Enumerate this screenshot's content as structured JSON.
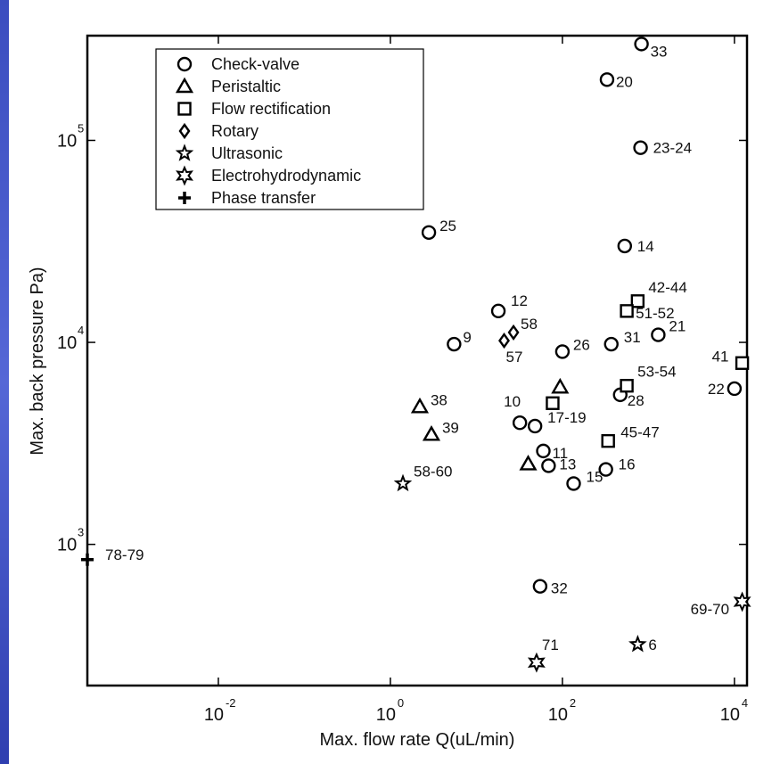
{
  "chart_data": {
    "type": "scatter",
    "xlabel": "Max. flow rate  Q(uL/min)",
    "ylabel": "Max. back pressure Pa)",
    "xscale": "log",
    "yscale": "log",
    "xlim": [
      0.0003,
      14000
    ],
    "ylim": [
      200,
      330000
    ],
    "x_ticks": [
      {
        "base": "10",
        "exp": "-2",
        "value": 0.01
      },
      {
        "base": "10",
        "exp": "0",
        "value": 1
      },
      {
        "base": "10",
        "exp": "2",
        "value": 100
      },
      {
        "base": "10",
        "exp": "4",
        "value": 10000
      }
    ],
    "y_ticks": [
      {
        "base": "10",
        "exp": "3",
        "value": 1000
      },
      {
        "base": "10",
        "exp": "4",
        "value": 10000
      },
      {
        "base": "10",
        "exp": "5",
        "value": 100000
      }
    ],
    "legend": {
      "position": "top-left",
      "entries": [
        {
          "series": "check-valve",
          "label": "Check-valve"
        },
        {
          "series": "peristaltic",
          "label": "Peristaltic"
        },
        {
          "series": "flow-rectification",
          "label": "Flow rectification"
        },
        {
          "series": "rotary",
          "label": "Rotary"
        },
        {
          "series": "ultrasonic",
          "label": "Ultrasonic"
        },
        {
          "series": "electrohydrodynamic",
          "label": "Electrohydrodynamic"
        },
        {
          "series": "phase-transfer",
          "label": "Phase transfer"
        }
      ]
    },
    "series": [
      {
        "name": "Check-valve",
        "marker": "circle",
        "points": [
          {
            "x": 830,
            "y": 300000,
            "label": "33"
          },
          {
            "x": 330,
            "y": 200000,
            "label": "20"
          },
          {
            "x": 810,
            "y": 92000,
            "label": "23-24"
          },
          {
            "x": 2.8,
            "y": 35000,
            "label": "25"
          },
          {
            "x": 530,
            "y": 30000,
            "label": "14"
          },
          {
            "x": 18,
            "y": 14300,
            "label": "12"
          },
          {
            "x": 5.5,
            "y": 9800,
            "label": "9"
          },
          {
            "x": 100,
            "y": 9000,
            "label": "26"
          },
          {
            "x": 370,
            "y": 9800,
            "label": "31"
          },
          {
            "x": 1300,
            "y": 10900,
            "label": "21"
          },
          {
            "x": 470,
            "y": 5500,
            "label": "28"
          },
          {
            "x": 10000,
            "y": 5900,
            "label": "22"
          },
          {
            "x": 32,
            "y": 4000,
            "label": "10"
          },
          {
            "x": 48,
            "y": 3850,
            "label": "17-19"
          },
          {
            "x": 60,
            "y": 2900,
            "label": "11"
          },
          {
            "x": 69,
            "y": 2450,
            "label": "13"
          },
          {
            "x": 135,
            "y": 2000,
            "label": "15"
          },
          {
            "x": 320,
            "y": 2350,
            "label": "16"
          },
          {
            "x": 55,
            "y": 620,
            "label": "32"
          }
        ]
      },
      {
        "name": "Peristaltic",
        "marker": "triangle",
        "points": [
          {
            "x": 2.2,
            "y": 4800,
            "label": "38"
          },
          {
            "x": 3.0,
            "y": 3500,
            "label": "39"
          },
          {
            "x": 94,
            "y": 6000,
            "label": ""
          },
          {
            "x": 40,
            "y": 2500,
            "label": ""
          }
        ]
      },
      {
        "name": "Flow rectification",
        "marker": "square",
        "points": [
          {
            "x": 750,
            "y": 16000,
            "label": "42-44"
          },
          {
            "x": 560,
            "y": 14300,
            "label": "51-52"
          },
          {
            "x": 12300,
            "y": 7900,
            "label": "41"
          },
          {
            "x": 560,
            "y": 6100,
            "label": "53-54"
          },
          {
            "x": 77,
            "y": 5000,
            "label": ""
          },
          {
            "x": 340,
            "y": 3250,
            "label": "45-47"
          }
        ]
      },
      {
        "name": "Rotary",
        "marker": "diamond",
        "points": [
          {
            "x": 27,
            "y": 11200,
            "label": "58"
          },
          {
            "x": 21,
            "y": 10200,
            "label": "57"
          }
        ]
      },
      {
        "name": "Ultrasonic",
        "marker": "star5",
        "points": [
          {
            "x": 1.4,
            "y": 2000,
            "label": "58-60"
          },
          {
            "x": 750,
            "y": 320,
            "label": "6"
          }
        ]
      },
      {
        "name": "Electrohydrodynamic",
        "marker": "star6",
        "points": [
          {
            "x": 12300,
            "y": 520,
            "label": "69-70"
          },
          {
            "x": 50,
            "y": 260,
            "label": "71"
          }
        ]
      },
      {
        "name": "Phase transfer",
        "marker": "plus",
        "points": [
          {
            "x": 0.0003,
            "y": 840,
            "label": "78-79"
          }
        ]
      }
    ]
  }
}
